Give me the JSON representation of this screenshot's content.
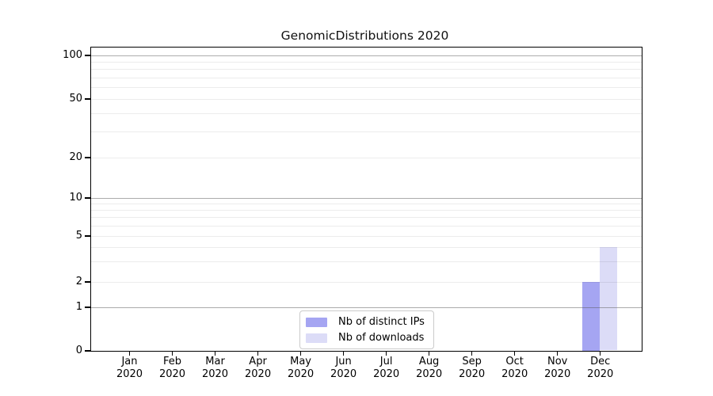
{
  "chart_data": {
    "type": "bar",
    "title": "GenomicDistributions 2020",
    "x_axis": {
      "months": [
        "Jan",
        "Feb",
        "Mar",
        "Apr",
        "May",
        "Jun",
        "Jul",
        "Aug",
        "Sep",
        "Oct",
        "Nov",
        "Dec"
      ],
      "year": "2020"
    },
    "y_axis": {
      "scale": "symlog",
      "range": [
        0,
        100
      ],
      "tick_values": [
        0,
        1,
        2,
        5,
        10,
        20,
        50,
        100
      ],
      "major_gridlines": [
        1,
        10,
        100
      ],
      "minor_gridlines": [
        2,
        3,
        4,
        5,
        6,
        7,
        8,
        9,
        20,
        30,
        40,
        50,
        60,
        70,
        80,
        90
      ]
    },
    "series": [
      {
        "name": "Nb of distinct IPs",
        "color": "#a5a5f2",
        "values": [
          0,
          0,
          0,
          0,
          0,
          0,
          0,
          0,
          0,
          0,
          0,
          2
        ]
      },
      {
        "name": "Nb of downloads",
        "color": "#dcdcf7",
        "values": [
          0,
          0,
          0,
          0,
          0,
          0,
          0,
          0,
          0,
          0,
          0,
          4
        ]
      }
    ],
    "legend": {
      "position": "bottom-center",
      "items": [
        "Nb of distinct IPs",
        "Nb of downloads"
      ]
    },
    "grid": "horizontal",
    "background": "#ffffff",
    "colors": {
      "frame": "#000000",
      "major_grid": "#b4b4b4",
      "minor_grid": "#ececec"
    }
  }
}
